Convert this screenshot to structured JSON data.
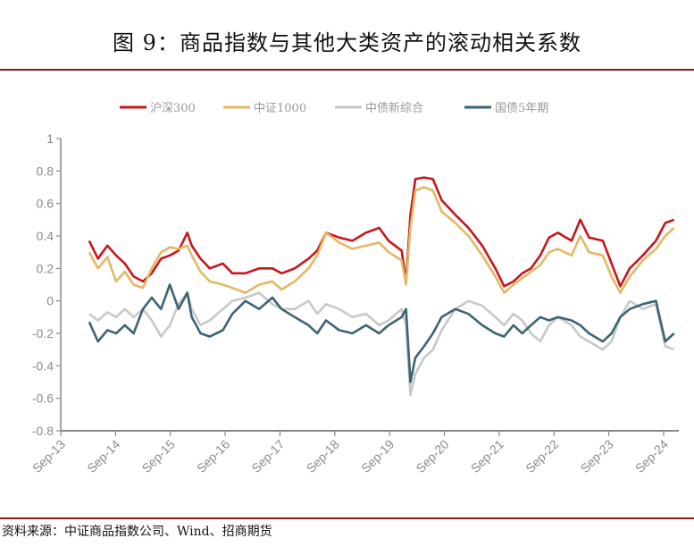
{
  "title": "图 9：商品指数与其他大类资产的滚动相关系数",
  "source": "资料来源：中证商品指数公司、Wind、招商期货",
  "chart_data": {
    "type": "line",
    "title": "商品指数与其他大类资产的滚动相关系数",
    "xlabel": "",
    "ylabel": "",
    "ylim": [
      -0.8,
      1
    ],
    "yticks": [
      1,
      0.8,
      0.6,
      0.4,
      0.2,
      0,
      -0.2,
      -0.4,
      -0.6,
      -0.8
    ],
    "ytick_labels": [
      "1",
      "0.8",
      "0.6",
      "0.4",
      "0.2",
      "0",
      "-0.2",
      "-0.4",
      "-0.6",
      "-0.8"
    ],
    "xlim": [
      2013.67,
      2024.95
    ],
    "xticks": [
      2013.67,
      2014.67,
      2015.67,
      2016.67,
      2017.67,
      2018.67,
      2019.67,
      2020.67,
      2021.67,
      2022.67,
      2023.67,
      2024.67
    ],
    "xtick_labels": [
      "Sep-13",
      "Sep-14",
      "Sep-15",
      "Sep-16",
      "Sep-17",
      "Sep-18",
      "Sep-19",
      "Sep-20",
      "Sep-21",
      "Sep-22",
      "Sep-23",
      "Sep-24"
    ],
    "grid": false,
    "legend_position": "top-center",
    "series": [
      {
        "name": "沪深300",
        "color": "#c8161d",
        "x": [
          2014.19,
          2014.35,
          2014.52,
          2014.68,
          2014.84,
          2015.0,
          2015.17,
          2015.33,
          2015.5,
          2015.66,
          2015.82,
          2015.98,
          2016.06,
          2016.22,
          2016.39,
          2016.63,
          2016.8,
          2017.04,
          2017.29,
          2017.53,
          2017.7,
          2017.94,
          2018.19,
          2018.35,
          2018.51,
          2018.75,
          2018.99,
          2019.24,
          2019.48,
          2019.65,
          2019.89,
          2019.97,
          2020.05,
          2020.14,
          2020.3,
          2020.46,
          2020.62,
          2020.87,
          2021.11,
          2021.36,
          2021.6,
          2021.76,
          2021.93,
          2022.09,
          2022.25,
          2022.42,
          2022.58,
          2022.74,
          2022.99,
          2023.15,
          2023.31,
          2023.56,
          2023.72,
          2023.88,
          2024.05,
          2024.29,
          2024.53,
          2024.7,
          2024.86
        ],
        "y": [
          0.37,
          0.26,
          0.34,
          0.28,
          0.23,
          0.15,
          0.12,
          0.17,
          0.26,
          0.28,
          0.31,
          0.42,
          0.34,
          0.26,
          0.2,
          0.23,
          0.17,
          0.17,
          0.2,
          0.2,
          0.17,
          0.2,
          0.26,
          0.31,
          0.42,
          0.39,
          0.37,
          0.42,
          0.45,
          0.37,
          0.31,
          0.12,
          0.53,
          0.75,
          0.76,
          0.75,
          0.62,
          0.53,
          0.45,
          0.34,
          0.2,
          0.09,
          0.12,
          0.17,
          0.2,
          0.28,
          0.39,
          0.42,
          0.37,
          0.5,
          0.39,
          0.37,
          0.23,
          0.09,
          0.2,
          0.28,
          0.37,
          0.48,
          0.5
        ]
      },
      {
        "name": "中证1000",
        "color": "#e3b865",
        "x": [
          2014.19,
          2014.35,
          2014.52,
          2014.68,
          2014.84,
          2015.0,
          2015.17,
          2015.33,
          2015.5,
          2015.66,
          2015.82,
          2015.98,
          2016.06,
          2016.22,
          2016.39,
          2016.63,
          2016.8,
          2017.04,
          2017.29,
          2017.53,
          2017.7,
          2017.94,
          2018.19,
          2018.35,
          2018.51,
          2018.75,
          2018.99,
          2019.24,
          2019.48,
          2019.65,
          2019.89,
          2019.97,
          2020.05,
          2020.14,
          2020.3,
          2020.46,
          2020.62,
          2020.87,
          2021.11,
          2021.36,
          2021.6,
          2021.76,
          2021.93,
          2022.09,
          2022.25,
          2022.42,
          2022.58,
          2022.74,
          2022.99,
          2023.15,
          2023.31,
          2023.56,
          2023.72,
          2023.88,
          2024.05,
          2024.29,
          2024.53,
          2024.7,
          2024.86
        ],
        "y": [
          0.3,
          0.2,
          0.27,
          0.12,
          0.18,
          0.1,
          0.08,
          0.2,
          0.3,
          0.33,
          0.32,
          0.34,
          0.28,
          0.18,
          0.12,
          0.1,
          0.08,
          0.05,
          0.1,
          0.12,
          0.07,
          0.12,
          0.2,
          0.28,
          0.42,
          0.36,
          0.32,
          0.34,
          0.36,
          0.3,
          0.25,
          0.1,
          0.45,
          0.68,
          0.7,
          0.68,
          0.55,
          0.48,
          0.4,
          0.28,
          0.15,
          0.05,
          0.1,
          0.14,
          0.18,
          0.22,
          0.3,
          0.32,
          0.28,
          0.4,
          0.3,
          0.28,
          0.15,
          0.05,
          0.15,
          0.25,
          0.32,
          0.4,
          0.45
        ]
      },
      {
        "name": "中债新综合",
        "color": "#c8c8c8",
        "x": [
          2014.19,
          2014.35,
          2014.52,
          2014.68,
          2014.84,
          2015.0,
          2015.17,
          2015.33,
          2015.5,
          2015.66,
          2015.82,
          2015.98,
          2016.06,
          2016.22,
          2016.39,
          2016.63,
          2016.8,
          2017.04,
          2017.29,
          2017.53,
          2017.7,
          2017.94,
          2018.19,
          2018.35,
          2018.51,
          2018.75,
          2018.99,
          2019.24,
          2019.48,
          2019.65,
          2019.89,
          2019.97,
          2020.05,
          2020.14,
          2020.3,
          2020.46,
          2020.62,
          2020.87,
          2021.11,
          2021.36,
          2021.6,
          2021.76,
          2021.93,
          2022.09,
          2022.25,
          2022.42,
          2022.58,
          2022.74,
          2022.99,
          2023.15,
          2023.31,
          2023.56,
          2023.72,
          2023.88,
          2024.05,
          2024.29,
          2024.53,
          2024.7,
          2024.86
        ],
        "y": [
          -0.08,
          -0.12,
          -0.07,
          -0.1,
          -0.05,
          -0.1,
          -0.05,
          -0.12,
          -0.22,
          -0.15,
          -0.02,
          0.05,
          -0.05,
          -0.15,
          -0.12,
          -0.05,
          0.0,
          0.02,
          0.05,
          -0.02,
          -0.05,
          -0.05,
          0.0,
          -0.08,
          -0.02,
          -0.05,
          -0.1,
          -0.08,
          -0.15,
          -0.12,
          -0.05,
          -0.15,
          -0.58,
          -0.45,
          -0.35,
          -0.3,
          -0.18,
          -0.05,
          0.0,
          -0.03,
          -0.1,
          -0.15,
          -0.08,
          -0.12,
          -0.2,
          -0.25,
          -0.15,
          -0.1,
          -0.15,
          -0.22,
          -0.25,
          -0.3,
          -0.25,
          -0.1,
          0.0,
          -0.05,
          -0.02,
          -0.28,
          -0.3
        ]
      },
      {
        "name": "国债5年期",
        "color": "#3d6473",
        "x": [
          2014.19,
          2014.35,
          2014.52,
          2014.68,
          2014.84,
          2015.0,
          2015.17,
          2015.33,
          2015.5,
          2015.66,
          2015.82,
          2015.98,
          2016.06,
          2016.22,
          2016.39,
          2016.63,
          2016.8,
          2017.04,
          2017.29,
          2017.53,
          2017.7,
          2017.94,
          2018.19,
          2018.35,
          2018.51,
          2018.75,
          2018.99,
          2019.24,
          2019.48,
          2019.65,
          2019.89,
          2019.97,
          2020.05,
          2020.14,
          2020.3,
          2020.46,
          2020.62,
          2020.87,
          2021.11,
          2021.36,
          2021.6,
          2021.76,
          2021.93,
          2022.09,
          2022.25,
          2022.42,
          2022.58,
          2022.74,
          2022.99,
          2023.15,
          2023.31,
          2023.56,
          2023.72,
          2023.88,
          2024.05,
          2024.29,
          2024.53,
          2024.7,
          2024.86
        ],
        "y": [
          -0.13,
          -0.25,
          -0.18,
          -0.2,
          -0.15,
          -0.2,
          -0.05,
          0.02,
          -0.05,
          0.1,
          -0.05,
          0.05,
          -0.1,
          -0.2,
          -0.22,
          -0.18,
          -0.08,
          0.0,
          -0.05,
          0.02,
          -0.05,
          -0.1,
          -0.15,
          -0.2,
          -0.12,
          -0.18,
          -0.2,
          -0.15,
          -0.2,
          -0.15,
          -0.1,
          -0.05,
          -0.5,
          -0.35,
          -0.28,
          -0.2,
          -0.1,
          -0.05,
          -0.08,
          -0.15,
          -0.2,
          -0.22,
          -0.15,
          -0.2,
          -0.15,
          -0.1,
          -0.12,
          -0.1,
          -0.12,
          -0.15,
          -0.2,
          -0.25,
          -0.2,
          -0.1,
          -0.05,
          -0.02,
          0.0,
          -0.25,
          -0.2
        ]
      }
    ]
  }
}
